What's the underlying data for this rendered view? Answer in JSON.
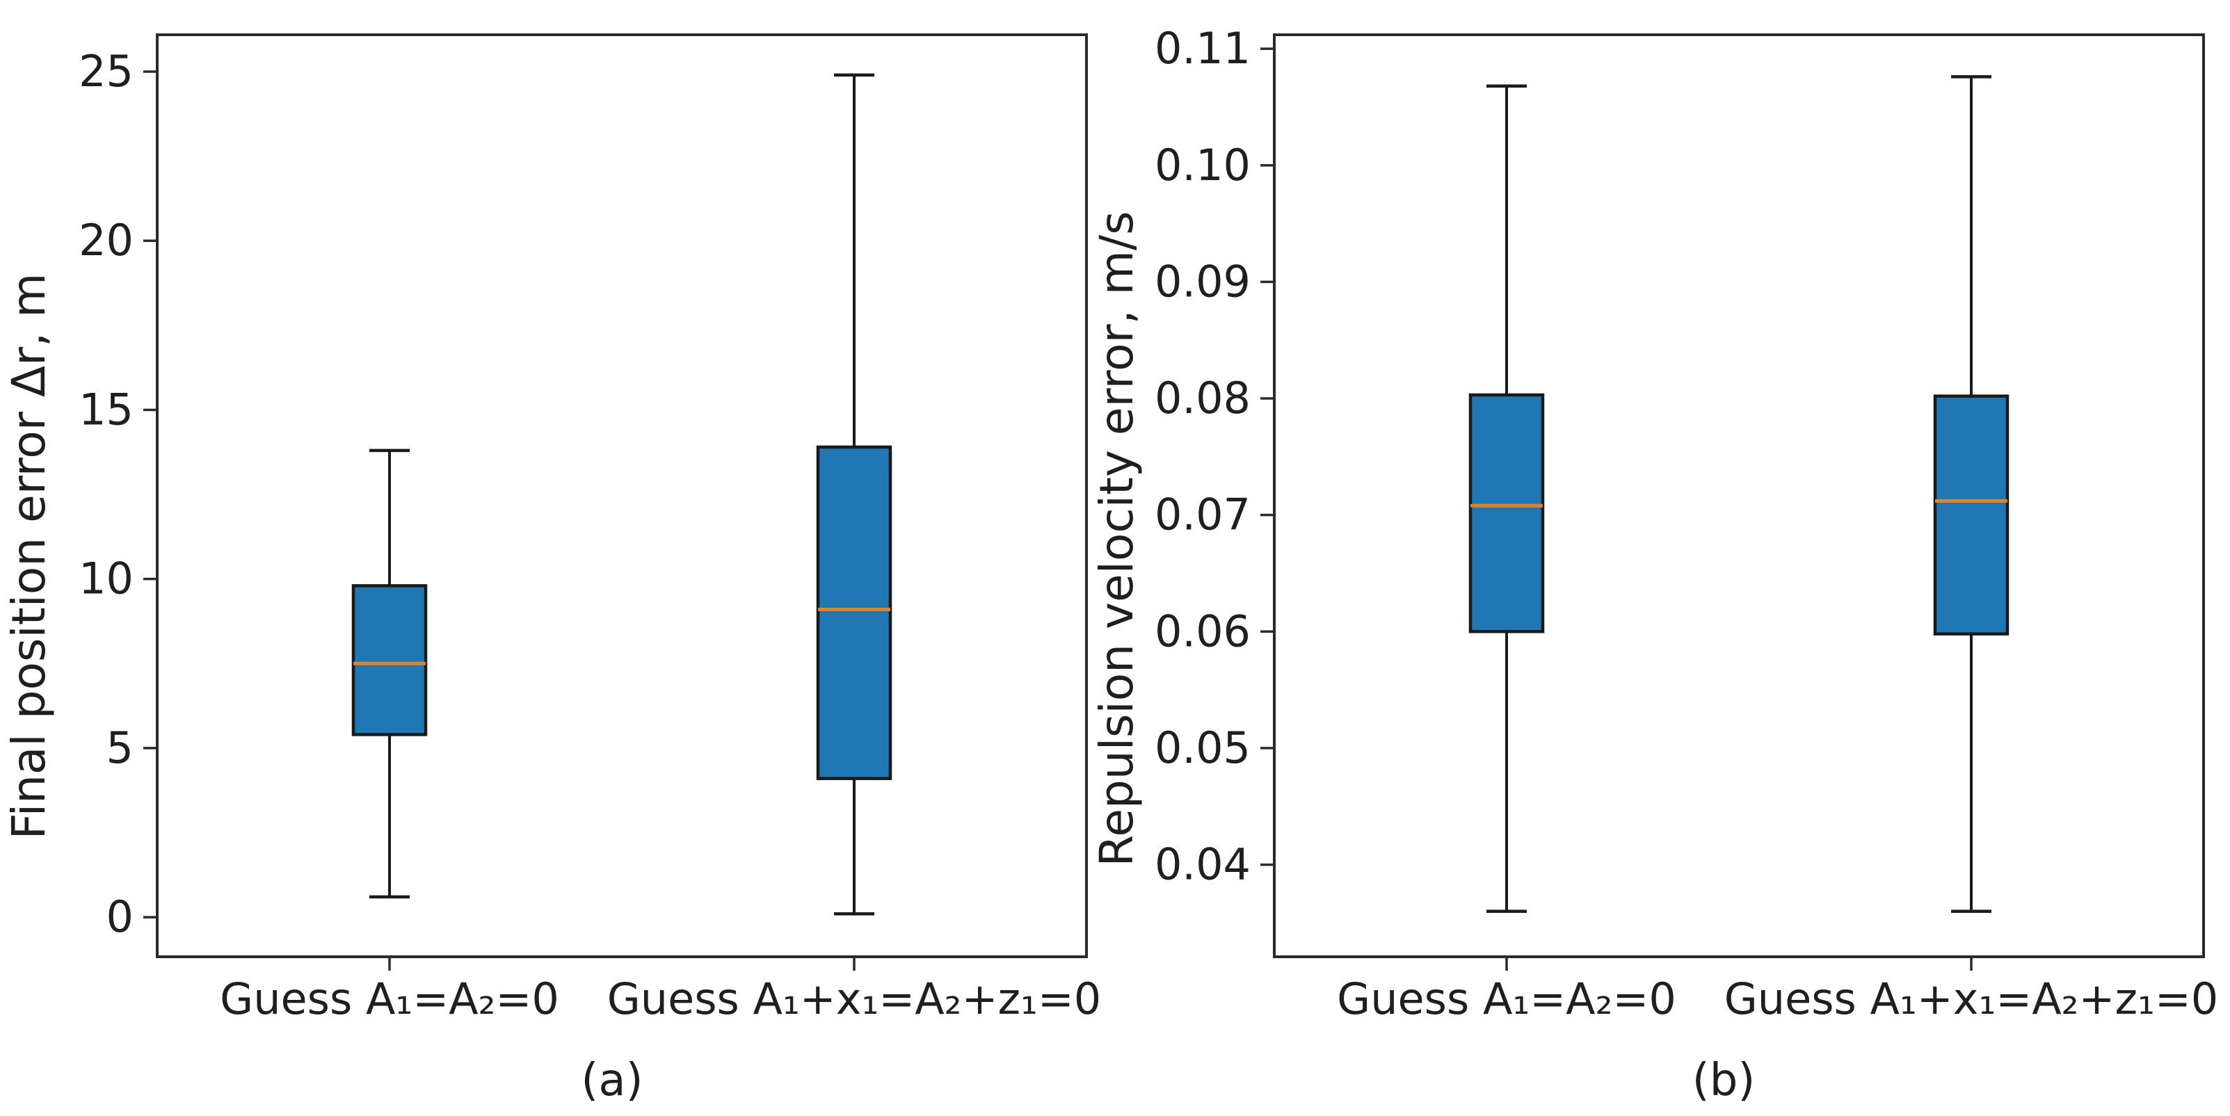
{
  "figure": {
    "background": "#ffffff"
  },
  "chart_data": [
    {
      "type": "box",
      "panel": "a",
      "caption": "(a)",
      "ylabel": "Final position error Δr, m",
      "categories": [
        "Guess A₁=A₂=0",
        "Guess A₁+x₁=A₂+z₁=0"
      ],
      "positions": [
        1,
        2
      ],
      "xlim": [
        0.5,
        2.5
      ],
      "ylim": [
        -1.17,
        26.09
      ],
      "yticks": [
        0,
        5,
        10,
        15,
        20,
        25
      ],
      "ytick_labels": [
        "0",
        "5",
        "10",
        "15",
        "20",
        "25"
      ],
      "grid": false,
      "series": [
        {
          "name": "Guess A₁=A₂=0",
          "whisker_low": 0.6,
          "q1": 5.4,
          "median": 7.5,
          "q3": 9.8,
          "whisker_high": 13.8
        },
        {
          "name": "Guess A₁+x₁=A₂+z₁=0",
          "whisker_low": 0.1,
          "q1": 4.1,
          "median": 9.1,
          "q3": 13.9,
          "whisker_high": 24.9
        }
      ],
      "colors": {
        "box_fill": "#1f77b4",
        "box_edge": "#1a1a1a",
        "whisker": "#1a1a1a",
        "median": "#e8821e",
        "spine": "#2b2b2b",
        "text": "#1f1f1f"
      }
    },
    {
      "type": "box",
      "panel": "b",
      "caption": "(b)",
      "ylabel": "Repulsion velocity error, m/s",
      "categories": [
        "Guess A₁=A₂=0",
        "Guess A₁+x₁=A₂+z₁=0"
      ],
      "positions": [
        1,
        2
      ],
      "xlim": [
        0.5,
        2.5
      ],
      "ylim": [
        0.0321,
        0.1112
      ],
      "yticks": [
        0.04,
        0.05,
        0.06,
        0.07,
        0.08,
        0.09,
        0.1,
        0.11
      ],
      "ytick_labels": [
        "0.04",
        "0.05",
        "0.06",
        "0.07",
        "0.08",
        "0.09",
        "0.10",
        "0.11"
      ],
      "grid": false,
      "series": [
        {
          "name": "Guess A₁=A₂=0",
          "whisker_low": 0.036,
          "q1": 0.06,
          "median": 0.0708,
          "q3": 0.0803,
          "whisker_high": 0.1068
        },
        {
          "name": "Guess A₁+x₁=A₂+z₁=0",
          "whisker_low": 0.036,
          "q1": 0.0598,
          "median": 0.0712,
          "q3": 0.0802,
          "whisker_high": 0.1076
        }
      ],
      "colors": {
        "box_fill": "#1f77b4",
        "box_edge": "#1a1a1a",
        "whisker": "#1a1a1a",
        "median": "#e8821e",
        "spine": "#2b2b2b",
        "text": "#1f1f1f"
      }
    }
  ]
}
